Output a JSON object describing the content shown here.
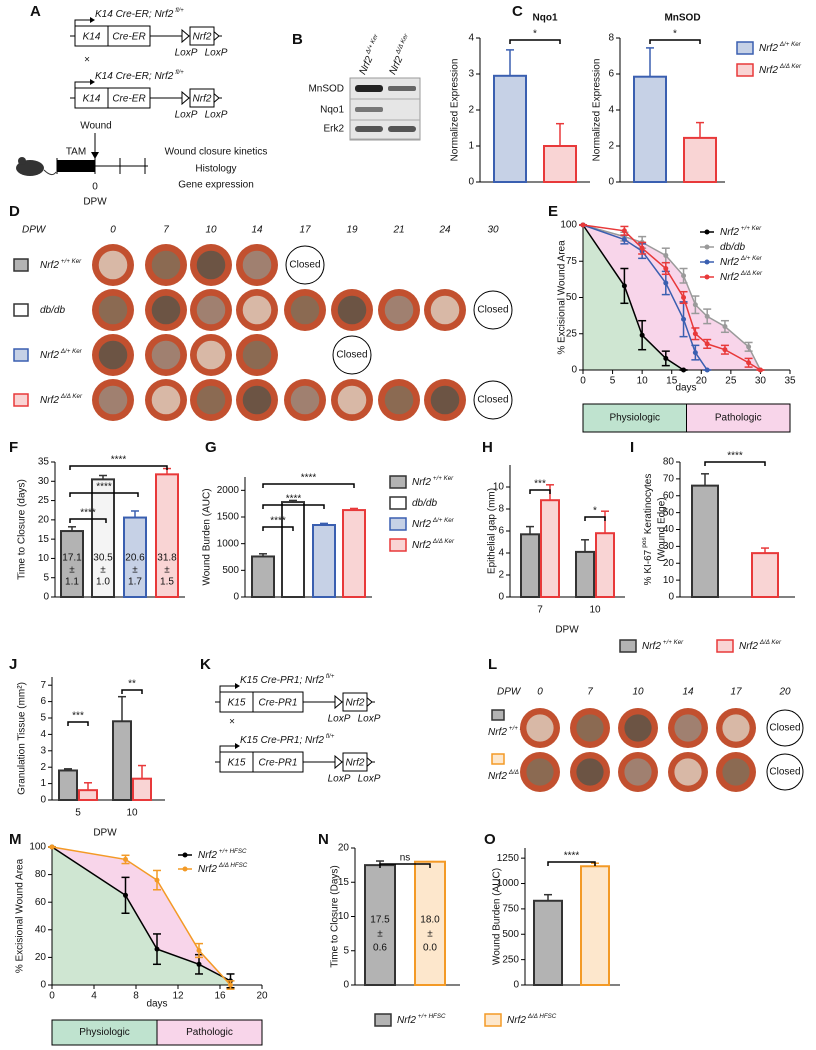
{
  "panel_labels": [
    "A",
    "B",
    "C",
    "D",
    "E",
    "F",
    "G",
    "H",
    "I",
    "J",
    "K",
    "L",
    "M",
    "N",
    "O"
  ],
  "diagrams": [
    {
      "cross": "×",
      "constructs": [
        {
          "genotype": "K14 Cre-ER; Nrf2",
          "sup": "fl/+",
          "promoter": "K14",
          "cre": "Cre-ER",
          "gene": "Nrf2",
          "loxp": [
            "LoxP",
            "LoxP"
          ]
        },
        {
          "genotype": "K14 Cre-ER; Nrf2",
          "sup": "fl/+",
          "promoter": "K14",
          "cre": "Cre-ER",
          "gene": "Nrf2",
          "loxp": [
            "LoxP",
            "LoxP"
          ]
        }
      ]
    },
    {
      "cross": "×",
      "constructs": [
        {
          "genotype": "K15 Cre-PR1; Nrf2",
          "sup": "fl/+",
          "promoter": "K15",
          "cre": "Cre-PR1",
          "gene": "Nrf2",
          "loxp": [
            "LoxP",
            "LoxP"
          ]
        },
        {
          "genotype": "K15 Cre-PR1; Nrf2",
          "sup": "fl/+",
          "promoter": "K15",
          "cre": "Cre-PR1",
          "gene": "Nrf2",
          "loxp": [
            "LoxP",
            "LoxP"
          ]
        }
      ]
    }
  ],
  "timeline": {
    "wound": "Wound",
    "tam": "TAM",
    "day0": 0,
    "dpw": "DPW",
    "outcomes": [
      "Wound closure kinetics",
      "Histology",
      "Gene expression"
    ]
  },
  "blot": {
    "columns": [
      {
        "text": "Nrf2",
        "sup": "Δ/+ Ker"
      },
      {
        "text": "Nrf2",
        "sup": "Δ/Δ Ker"
      }
    ],
    "rows": [
      "MnSOD",
      "Nqo1",
      "Erk2"
    ]
  },
  "photos_d": {
    "header": "DPW",
    "days": [
      0,
      7,
      10,
      14,
      17,
      19,
      21,
      24,
      30
    ],
    "closed": "Closed",
    "rows": [
      {
        "text": "Nrf2",
        "sup": "+/+ Ker"
      },
      {
        "text": "db/db"
      },
      {
        "text": "Nrf2",
        "sup": "Δ/+ Ker"
      },
      {
        "text": "Nrf2",
        "sup": "Δ/Δ Ker"
      }
    ]
  },
  "photos_l": {
    "header": "DPW",
    "days": [
      0,
      7,
      10,
      14,
      17,
      20
    ],
    "closed": "Closed",
    "rows": [
      {
        "text": "Nrf2",
        "sup": "+/+ HFSC"
      },
      {
        "text": "Nrf2",
        "sup": "Δ/Δ HFSC"
      }
    ]
  },
  "chart_data": [
    {
      "type": "bar",
      "title": "Nqo1",
      "y_label": "Normalized Expression",
      "values": [
        2.95,
        1.0
      ],
      "errors": [
        0.72,
        0.62
      ],
      "colors": [
        "#c6d1e6",
        "#f9d4d4"
      ],
      "edge_colors": [
        "#3a5fb0",
        "#e8393a"
      ],
      "ylim": [
        0,
        4
      ],
      "yticks": [
        0,
        1,
        2,
        3,
        4
      ],
      "annotations": [
        "*"
      ]
    },
    {
      "type": "bar",
      "title": "MnSOD",
      "y_label": "Normalized Expression",
      "values": [
        5.85,
        2.45
      ],
      "errors": [
        1.6,
        0.85
      ],
      "colors": [
        "#c6d1e6",
        "#f9d4d4"
      ],
      "edge_colors": [
        "#3a5fb0",
        "#e8393a"
      ],
      "ylim": [
        0,
        8
      ],
      "yticks": [
        0,
        2,
        4,
        6,
        8
      ],
      "annotations": [
        "*"
      ],
      "legend": [
        {
          "text": "Nrf2",
          "sup": "Δ/+ Ker"
        },
        {
          "text": "Nrf2",
          "sup": "Δ/Δ Ker"
        }
      ]
    },
    {
      "type": "line",
      "y_label": "% Excisional Wound Area",
      "x_label": "days",
      "xlim": [
        0,
        35
      ],
      "xticks": [
        0,
        5,
        10,
        15,
        20,
        25,
        30,
        35
      ],
      "ylim": [
        0,
        100
      ],
      "yticks": [
        0,
        25,
        50,
        75,
        100
      ],
      "zones": [
        "Physiologic",
        "Pathologic"
      ],
      "series": [
        {
          "name": "Nrf2",
          "name_sup": "+/+ Ker",
          "color": "#000000",
          "area_color": "#cfe6d2",
          "x": [
            0,
            7,
            10,
            14,
            17
          ],
          "values": [
            100,
            58,
            24,
            8,
            0
          ],
          "errors": [
            0,
            12,
            10,
            5,
            0
          ]
        },
        {
          "name": "db/db",
          "color": "#9a9a9a",
          "area_color": "#f8d5ea",
          "x": [
            0,
            7,
            10,
            14,
            17,
            19,
            21,
            24,
            28,
            30
          ],
          "values": [
            100,
            92,
            88,
            79,
            65,
            45,
            37,
            30,
            16,
            0
          ],
          "errors": [
            0,
            3,
            4,
            5,
            5,
            6,
            5,
            4,
            3,
            0
          ]
        },
        {
          "name": "Nrf2",
          "name_sup": "Δ/+ Ker",
          "color": "#3a5fb0",
          "x": [
            0,
            7,
            10,
            14,
            17,
            19,
            21
          ],
          "values": [
            100,
            90,
            82,
            60,
            35,
            12,
            0
          ],
          "errors": [
            0,
            3,
            5,
            8,
            12,
            5,
            0
          ]
        },
        {
          "name": "Nrf2",
          "name_sup": "Δ/Δ Ker",
          "color": "#e8393a",
          "x": [
            0,
            7,
            10,
            14,
            17,
            19,
            21,
            24,
            28,
            30
          ],
          "values": [
            100,
            96,
            84,
            70,
            50,
            25,
            18,
            14,
            5,
            0
          ],
          "errors": [
            0,
            3,
            4,
            4,
            4,
            4,
            3,
            3,
            3,
            0
          ]
        }
      ]
    },
    {
      "type": "bar",
      "y_label": "Time to Closure (days)",
      "values": [
        17.1,
        30.5,
        20.6,
        31.8
      ],
      "errors": [
        1.1,
        1.0,
        1.7,
        1.5
      ],
      "value_labels": [
        "17.1",
        "30.5",
        "20.6",
        "31.8"
      ],
      "error_labels": [
        "1.1",
        "1.0",
        "1.7",
        "1.5"
      ],
      "error_sign": "±",
      "colors": [
        "#b3b3b3",
        "#f4f4f4",
        "#c6d1e6",
        "#f9d4d4"
      ],
      "edge_colors": [
        "#333333",
        "#333333",
        "#3a5fb0",
        "#e8393a"
      ],
      "ylim": [
        0,
        35
      ],
      "yticks": [
        0,
        5,
        10,
        15,
        20,
        25,
        30,
        35
      ],
      "annotations": [
        "****",
        "****",
        "****"
      ]
    },
    {
      "type": "bar",
      "y_label": "Wound Burden (AUC)",
      "values": [
        760,
        1780,
        1350,
        1630
      ],
      "errors": [
        50,
        30,
        30,
        30
      ],
      "colors": [
        "#b3b3b3",
        "#ffffff",
        "#c6d1e6",
        "#f9d4d4"
      ],
      "edge_colors": [
        "#333333",
        "#333333",
        "#3a5fb0",
        "#e8393a"
      ],
      "ylim": [
        0,
        2250
      ],
      "yticks": [
        0,
        500,
        1000,
        1500,
        2000
      ],
      "annotations": [
        "****",
        "****",
        "****"
      ],
      "legend": [
        {
          "text": "Nrf2",
          "sup": "+/+ Ker"
        },
        {
          "text": "db/db"
        },
        {
          "text": "Nrf2",
          "sup": "Δ/+ Ker"
        },
        {
          "text": "Nrf2",
          "sup": "Δ/Δ Ker"
        }
      ]
    },
    {
      "type": "grouped_bar",
      "y_label": "Epithelial gap (mm)",
      "x_label": "DPW",
      "categories": [
        "7",
        "10"
      ],
      "ylim": [
        0,
        12
      ],
      "yticks": [
        0,
        2,
        4,
        6,
        8,
        10
      ],
      "annotations": [
        "***",
        "*"
      ],
      "series": [
        {
          "name": "Nrf2",
          "name_sup": "+/+ Ker",
          "color": "#b3b3b3",
          "edge_color": "#333333",
          "values": [
            5.7,
            4.1
          ],
          "errors": [
            0.7,
            1.1
          ]
        },
        {
          "name": "Nrf2",
          "name_sup": "Δ/Δ Ker",
          "color": "#f9d4d4",
          "edge_color": "#e8393a",
          "values": [
            8.8,
            5.8
          ],
          "errors": [
            1.4,
            2.0
          ]
        }
      ]
    },
    {
      "type": "bar",
      "y_label": {
        "text": "% KI-67",
        "sup": "pos",
        "rest": "Keratinocytes",
        "line2": "(Wound Edge)"
      },
      "values": [
        66,
        26
      ],
      "errors": [
        7,
        3
      ],
      "colors": [
        "#b3b3b3",
        "#f9d4d4"
      ],
      "edge_colors": [
        "#333333",
        "#e8393a"
      ],
      "ylim": [
        0,
        80
      ],
      "yticks": [
        0,
        10,
        20,
        30,
        40,
        50,
        60,
        70,
        80
      ],
      "annotations": [
        "****"
      ]
    },
    {
      "type": "grouped_bar",
      "y_label": "Granulation Tissue (mm²)",
      "x_label": "DPW",
      "categories": [
        "5",
        "10"
      ],
      "ylim": [
        0,
        7.5
      ],
      "yticks": [
        0,
        1,
        2,
        3,
        4,
        5,
        6,
        7
      ],
      "annotations": [
        "***",
        "**"
      ],
      "series": [
        {
          "color": "#b3b3b3",
          "edge_color": "#333333",
          "values": [
            1.8,
            4.8
          ],
          "errors": [
            0.1,
            1.5
          ]
        },
        {
          "color": "#f9d4d4",
          "edge_color": "#e8393a",
          "values": [
            0.6,
            1.3
          ],
          "errors": [
            0.45,
            0.8
          ]
        }
      ]
    },
    {
      "type": "line",
      "y_label": "% Excisional Wound Area",
      "x_label": "days",
      "xlim": [
        0,
        20
      ],
      "xticks": [
        0,
        4,
        8,
        12,
        16,
        20
      ],
      "ylim": [
        0,
        100
      ],
      "yticks": [
        0,
        20,
        40,
        60,
        80,
        100
      ],
      "zones": [
        "Physiologic",
        "Pathologic"
      ],
      "series": [
        {
          "name": "Nrf2",
          "name_sup": "+/+ HFSC",
          "color": "#000000",
          "area_color": "#cfe6d2",
          "x": [
            0,
            7,
            10,
            14,
            17
          ],
          "values": [
            100,
            65,
            26,
            15,
            3
          ],
          "errors": [
            0,
            13,
            11,
            7,
            5
          ]
        },
        {
          "name": "Nrf2",
          "name_sup": "Δ/Δ HFSC",
          "color": "#f39a26",
          "area_color": "#f8d5ea",
          "x": [
            0,
            7,
            10,
            14,
            17
          ],
          "values": [
            100,
            91,
            76,
            25,
            0
          ],
          "errors": [
            0,
            3,
            7,
            5,
            3
          ]
        }
      ]
    },
    {
      "type": "bar",
      "y_label": "Time to Closure (Days)",
      "values": [
        17.5,
        18.0
      ],
      "errors": [
        0.6,
        0.0
      ],
      "value_labels": [
        "17.5",
        "18.0"
      ],
      "error_labels": [
        "0.6",
        "0.0"
      ],
      "error_sign": "±",
      "colors": [
        "#b3b3b3",
        "#fde7cc"
      ],
      "edge_colors": [
        "#333333",
        "#f39a26"
      ],
      "ylim": [
        0,
        20
      ],
      "yticks": [
        0,
        5,
        10,
        15,
        20
      ],
      "annotations": [
        "ns"
      ],
      "legend": [
        {
          "text": "Nrf2",
          "sup": "+/+ HFSC"
        },
        {
          "text": "Nrf2",
          "sup": "Δ/Δ HFSC"
        }
      ]
    },
    {
      "type": "bar",
      "y_label": "Wound Burden (AUC)",
      "values": [
        830,
        1170
      ],
      "errors": [
        60,
        30
      ],
      "colors": [
        "#b3b3b3",
        "#fde7cc"
      ],
      "edge_colors": [
        "#333333",
        "#f39a26"
      ],
      "ylim": [
        0,
        1350
      ],
      "yticks": [
        0,
        250,
        500,
        750,
        1000,
        1250
      ],
      "annotations": [
        "****"
      ]
    }
  ]
}
